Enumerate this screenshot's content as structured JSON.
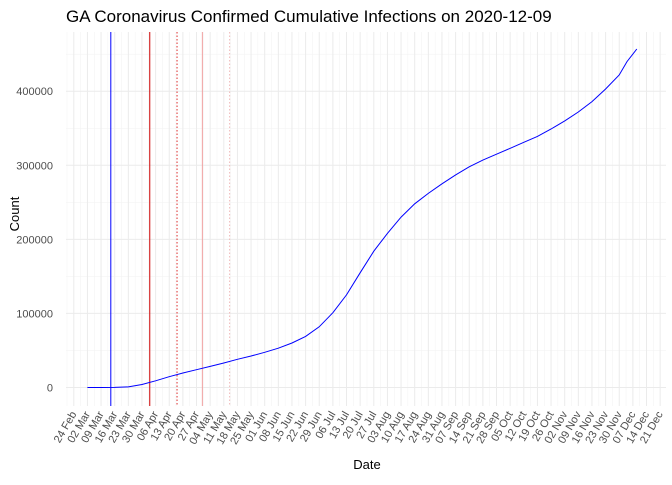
{
  "chart_data": {
    "type": "line",
    "title": "GA Coronavirus Confirmed Cumulative Infections on 2020-12-09",
    "xlabel": "Date",
    "ylabel": "Count",
    "grid": true,
    "legend": "none",
    "xlim": [
      "2020-02-20",
      "2020-12-24"
    ],
    "ylim": [
      -25000,
      480000
    ],
    "x_tick_labels": [
      "24 Feb",
      "02 Mar",
      "09 Mar",
      "16 Mar",
      "23 Mar",
      "30 Mar",
      "06 Apr",
      "13 Apr",
      "20 Apr",
      "27 Apr",
      "04 May",
      "11 May",
      "18 May",
      "25 May",
      "01 Jun",
      "08 Jun",
      "15 Jun",
      "22 Jun",
      "29 Jun",
      "06 Jul",
      "13 Jul",
      "20 Jul",
      "27 Jul",
      "03 Aug",
      "10 Aug",
      "17 Aug",
      "24 Aug",
      "31 Aug",
      "07 Sep",
      "14 Sep",
      "21 Sep",
      "28 Sep",
      "05 Oct",
      "12 Oct",
      "19 Oct",
      "26 Oct",
      "02 Nov",
      "09 Nov",
      "16 Nov",
      "23 Nov",
      "30 Nov",
      "07 Dec",
      "14 Dec",
      "21 Dec"
    ],
    "x_tick_dates": [
      "2020-02-24",
      "2020-03-02",
      "2020-03-09",
      "2020-03-16",
      "2020-03-23",
      "2020-03-30",
      "2020-04-06",
      "2020-04-13",
      "2020-04-20",
      "2020-04-27",
      "2020-05-04",
      "2020-05-11",
      "2020-05-18",
      "2020-05-25",
      "2020-06-01",
      "2020-06-08",
      "2020-06-15",
      "2020-06-22",
      "2020-06-29",
      "2020-07-06",
      "2020-07-13",
      "2020-07-20",
      "2020-07-27",
      "2020-08-03",
      "2020-08-10",
      "2020-08-17",
      "2020-08-24",
      "2020-08-31",
      "2020-09-07",
      "2020-09-14",
      "2020-09-21",
      "2020-09-28",
      "2020-10-05",
      "2020-10-12",
      "2020-10-19",
      "2020-10-26",
      "2020-11-02",
      "2020-11-09",
      "2020-11-16",
      "2020-11-23",
      "2020-11-30",
      "2020-12-07",
      "2020-12-14",
      "2020-12-21"
    ],
    "y_ticks": [
      0,
      100000,
      200000,
      300000,
      400000
    ],
    "y_tick_labels": [
      "0",
      "100000",
      "200000",
      "300000",
      "400000"
    ],
    "series": [
      {
        "color": "#0000ff",
        "points": [
          [
            "2020-03-02",
            0
          ],
          [
            "2020-03-09",
            0
          ],
          [
            "2020-03-16",
            120
          ],
          [
            "2020-03-23",
            800
          ],
          [
            "2020-03-30",
            4000
          ],
          [
            "2020-04-06",
            9000
          ],
          [
            "2020-04-13",
            14500
          ],
          [
            "2020-04-20",
            19500
          ],
          [
            "2020-04-27",
            24000
          ],
          [
            "2020-05-04",
            28500
          ],
          [
            "2020-05-11",
            33000
          ],
          [
            "2020-05-18",
            38000
          ],
          [
            "2020-05-25",
            42500
          ],
          [
            "2020-06-01",
            47500
          ],
          [
            "2020-06-08",
            53000
          ],
          [
            "2020-06-15",
            60000
          ],
          [
            "2020-06-22",
            69000
          ],
          [
            "2020-06-29",
            82000
          ],
          [
            "2020-07-06",
            101000
          ],
          [
            "2020-07-13",
            125000
          ],
          [
            "2020-07-20",
            155000
          ],
          [
            "2020-07-27",
            184000
          ],
          [
            "2020-08-03",
            208000
          ],
          [
            "2020-08-10",
            230000
          ],
          [
            "2020-08-17",
            248000
          ],
          [
            "2020-08-24",
            262000
          ],
          [
            "2020-08-31",
            275000
          ],
          [
            "2020-09-07",
            287000
          ],
          [
            "2020-09-14",
            298000
          ],
          [
            "2020-09-21",
            307000
          ],
          [
            "2020-09-28",
            315000
          ],
          [
            "2020-10-05",
            323000
          ],
          [
            "2020-10-12",
            331000
          ],
          [
            "2020-10-19",
            339000
          ],
          [
            "2020-10-26",
            349000
          ],
          [
            "2020-11-02",
            360000
          ],
          [
            "2020-11-09",
            372000
          ],
          [
            "2020-11-16",
            386000
          ],
          [
            "2020-11-23",
            403000
          ],
          [
            "2020-11-30",
            422000
          ],
          [
            "2020-12-04",
            440000
          ],
          [
            "2020-12-09",
            457000
          ]
        ]
      }
    ],
    "vertical_lines": [
      {
        "date": "2020-03-14",
        "color": "#0000ff",
        "style": "solid"
      },
      {
        "date": "2020-04-03",
        "color": "#cc0000",
        "style": "solid"
      },
      {
        "date": "2020-04-17",
        "color": "#e03030",
        "style": "dotted"
      },
      {
        "date": "2020-04-30",
        "color": "#f0a0a0",
        "style": "solid"
      },
      {
        "date": "2020-05-14",
        "color": "#f0b8b8",
        "style": "dotted"
      }
    ]
  }
}
